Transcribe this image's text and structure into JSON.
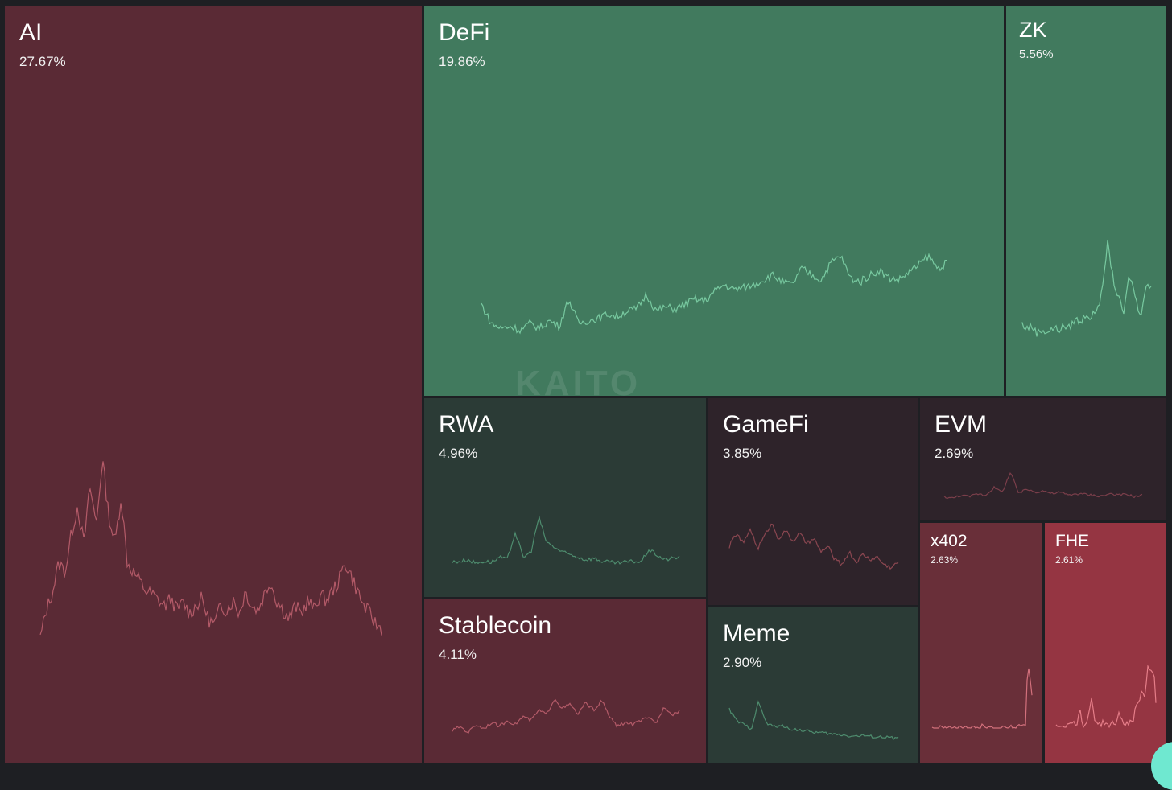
{
  "watermark": "KAITO",
  "chart_data": {
    "type": "treemap",
    "tiles": [
      {
        "id": "ai",
        "name": "AI",
        "share": "27.67%",
        "color": "#5a2a35",
        "line_color": "#b35a68",
        "spark": [
          5,
          20,
          30,
          45,
          40,
          60,
          75,
          55,
          85,
          65,
          100,
          70,
          55,
          80,
          45,
          40,
          35,
          30,
          28,
          25,
          22,
          26,
          20,
          24,
          18,
          22,
          26,
          15,
          12,
          22,
          20,
          25,
          18,
          30,
          22,
          20,
          28,
          35,
          25,
          20,
          15,
          22,
          18,
          25,
          20,
          28,
          25,
          30,
          35,
          45,
          38,
          30,
          22,
          18,
          12,
          10
        ]
      },
      {
        "id": "defi",
        "name": "DeFi",
        "share": "19.86%",
        "color": "#417a5e",
        "line_color": "#78c9a0",
        "spark": [
          35,
          15,
          10,
          12,
          8,
          15,
          10,
          18,
          12,
          40,
          15,
          18,
          20,
          25,
          22,
          28,
          30,
          45,
          28,
          32,
          30,
          35,
          40,
          38,
          48,
          55,
          50,
          52,
          55,
          60,
          65,
          58,
          55,
          72,
          65,
          60,
          78,
          85,
          62,
          58,
          65,
          70,
          62,
          60,
          68,
          75,
          85,
          72,
          78
        ]
      },
      {
        "id": "zk",
        "name": "ZK",
        "share": "5.56%",
        "color": "#417a5e",
        "line_color": "#78c9a0",
        "spark": [
          15,
          10,
          12,
          5,
          8,
          6,
          10,
          8,
          12,
          10,
          20,
          15,
          25,
          20,
          30,
          45,
          100,
          60,
          40,
          25,
          65,
          45,
          20,
          55,
          50
        ]
      },
      {
        "id": "rwa",
        "name": "RWA",
        "share": "4.96%",
        "color": "#2b3b36",
        "line_color": "#4e8c6e",
        "spark": [
          10,
          12,
          15,
          8,
          12,
          10,
          20,
          15,
          70,
          20,
          30,
          100,
          50,
          40,
          30,
          25,
          20,
          15,
          18,
          12,
          10,
          8,
          10,
          12,
          10,
          35,
          25,
          15,
          18,
          20
        ]
      },
      {
        "id": "stablecoin",
        "name": "Stablecoin",
        "share": "4.11%",
        "color": "#5a2a35",
        "line_color": "#b35a68",
        "spark": [
          20,
          30,
          15,
          35,
          25,
          40,
          30,
          45,
          35,
          55,
          45,
          70,
          60,
          100,
          75,
          85,
          60,
          90,
          70,
          95,
          55,
          30,
          40,
          35,
          45,
          50,
          40,
          80,
          60,
          70
        ]
      },
      {
        "id": "gamefi",
        "name": "GameFi",
        "share": "3.85%",
        "color": "#2e232a",
        "line_color": "#8a4650",
        "spark": [
          55,
          80,
          60,
          90,
          50,
          75,
          100,
          70,
          85,
          65,
          80,
          60,
          70,
          45,
          55,
          30,
          20,
          45,
          25,
          40,
          30,
          35,
          20,
          15,
          25
        ]
      },
      {
        "id": "meme",
        "name": "Meme",
        "share": "2.90%",
        "color": "#2b3b36",
        "line_color": "#4e8c6e",
        "spark": [
          80,
          50,
          40,
          30,
          100,
          45,
          35,
          38,
          30,
          28,
          25,
          22,
          20,
          18,
          15,
          15,
          12,
          10,
          12,
          10,
          8,
          8,
          6,
          5
        ]
      },
      {
        "id": "evm",
        "name": "EVM",
        "share": "2.69%",
        "color": "#2e232a",
        "line_color": "#7a3e4a",
        "spark": [
          20,
          15,
          25,
          20,
          30,
          25,
          50,
          35,
          100,
          30,
          45,
          35,
          40,
          30,
          35,
          25,
          30,
          28,
          25,
          22,
          30,
          25,
          28,
          20,
          25
        ]
      },
      {
        "id": "x402",
        "name": "x402",
        "share": "2.63%",
        "color": "#692f39",
        "line_color": "#d2707c",
        "spark": [
          0,
          0,
          0,
          0,
          0,
          0,
          0,
          0,
          0,
          0,
          0,
          0,
          0,
          0,
          0,
          0,
          0,
          0,
          0,
          0,
          0,
          0,
          0,
          8,
          2,
          1,
          0,
          0,
          0,
          0,
          0,
          0,
          0,
          0,
          0,
          0,
          0,
          2,
          1,
          3,
          5,
          4,
          6,
          3,
          100,
          90,
          50
        ]
      },
      {
        "id": "fhe",
        "name": "FHE",
        "share": "2.61%",
        "color": "#953542",
        "line_color": "#e57d88",
        "spark": [
          5,
          3,
          6,
          4,
          5,
          8,
          12,
          5,
          30,
          6,
          4,
          20,
          50,
          15,
          8,
          5,
          10,
          6,
          4,
          8,
          3,
          25,
          15,
          8,
          6,
          10,
          12,
          35,
          45,
          60,
          50,
          100,
          90,
          95,
          20
        ]
      }
    ]
  }
}
